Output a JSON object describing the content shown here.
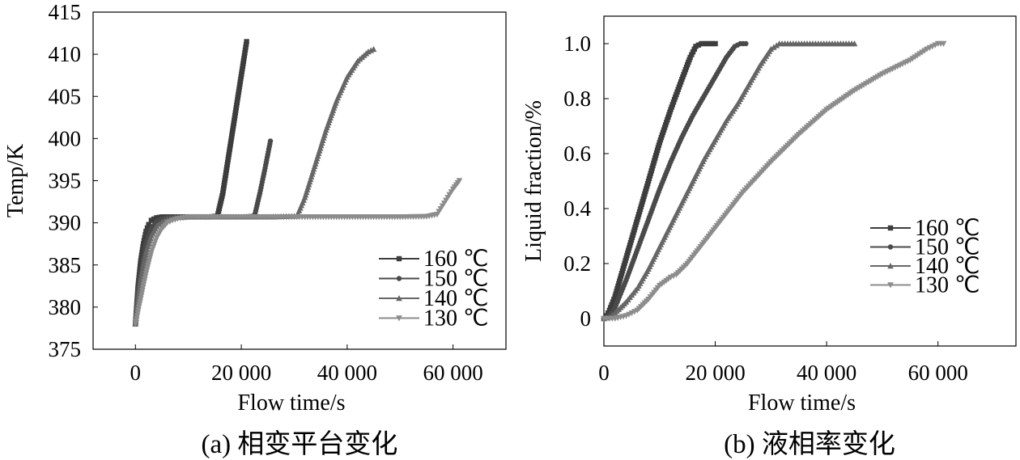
{
  "chart_data": [
    {
      "type": "line",
      "panel": "a",
      "caption": "(a) 相变平台变化",
      "xlabel": "Flow time/s",
      "ylabel": "Temp/K",
      "xlim": [
        -8000,
        70000
      ],
      "ylim": [
        375,
        415
      ],
      "xticks": [
        0,
        20000,
        40000,
        60000
      ],
      "xtick_labels": [
        "0",
        "20 000",
        "40 000",
        "60 000"
      ],
      "yticks": [
        375,
        380,
        385,
        390,
        395,
        400,
        405,
        410,
        415
      ],
      "ytick_labels": [
        "375",
        "380",
        "385",
        "390",
        "395",
        "400",
        "405",
        "410",
        "415"
      ],
      "legend_position": "lower-right",
      "series": [
        {
          "name": "160 ℃",
          "color": "#3d3d3d",
          "marker": "square",
          "x": [
            0,
            500,
            1000,
            1500,
            2000,
            2500,
            3000,
            4000,
            5000,
            6000,
            8000,
            10000,
            12000,
            14000,
            15500,
            16500,
            17500,
            18500,
            19500,
            20500,
            21000
          ],
          "y": [
            378,
            382.5,
            385.5,
            387.5,
            389,
            389.8,
            390.3,
            390.6,
            390.7,
            390.7,
            390.7,
            390.7,
            390.7,
            390.7,
            390.8,
            393.5,
            397.5,
            401.5,
            405.5,
            409.5,
            411.5
          ]
        },
        {
          "name": "150 ℃",
          "color": "#4a4a4a",
          "marker": "circle",
          "x": [
            0,
            500,
            1000,
            2000,
            3000,
            4000,
            5000,
            6000,
            8000,
            10000,
            14000,
            18000,
            20000,
            22500,
            23500,
            24500,
            25500
          ],
          "y": [
            378,
            381.5,
            384,
            387.5,
            389.3,
            390.2,
            390.5,
            390.6,
            390.7,
            390.7,
            390.7,
            390.7,
            390.7,
            390.8,
            393.5,
            396.5,
            399.7
          ]
        },
        {
          "name": "140 ℃",
          "color": "#666666",
          "marker": "triangle-up",
          "x": [
            0,
            500,
            1000,
            2000,
            3000,
            4000,
            5000,
            6000,
            7000,
            8000,
            10000,
            15000,
            20000,
            25000,
            30500,
            32000,
            34000,
            36000,
            38000,
            40000,
            42000,
            44000,
            45000
          ],
          "y": [
            378,
            381,
            383.3,
            386.5,
            388.5,
            389.6,
            390.1,
            390.4,
            390.55,
            390.65,
            390.7,
            390.7,
            390.7,
            390.7,
            390.8,
            393,
            397,
            401,
            404.5,
            407.3,
            409.2,
            410.3,
            410.6
          ]
        },
        {
          "name": "130 ℃",
          "color": "#8c8c8c",
          "marker": "triangle-down",
          "x": [
            0,
            1000,
            2000,
            3000,
            4000,
            5000,
            6000,
            7000,
            8000,
            9000,
            10000,
            12000,
            20000,
            30000,
            40000,
            50000,
            55000,
            57000,
            58000,
            59000,
            60000,
            61200
          ],
          "y": [
            378,
            381,
            384,
            386.5,
            388.2,
            389.3,
            390,
            390.3,
            390.5,
            390.6,
            390.7,
            390.7,
            390.7,
            390.7,
            390.7,
            390.7,
            390.75,
            391,
            392,
            393,
            394,
            395
          ]
        }
      ]
    },
    {
      "type": "line",
      "panel": "b",
      "caption": "(b) 液相率变化",
      "xlabel": "Flow time/s",
      "ylabel": "Liquid fraction/%",
      "xlim": [
        0,
        74000
      ],
      "ylim": [
        -0.1,
        1.1
      ],
      "xticks": [
        0,
        20000,
        40000,
        60000
      ],
      "xtick_labels": [
        "0",
        "20 000",
        "40 000",
        "60 000"
      ],
      "yticks": [
        0,
        0.2,
        0.4,
        0.6,
        0.8,
        1.0
      ],
      "ytick_labels": [
        "0",
        "0.2",
        "0.4",
        "0.6",
        "0.8",
        "1.0"
      ],
      "legend_position": "middle-right",
      "series": [
        {
          "name": "160 ℃",
          "color": "#3d3d3d",
          "marker": "square",
          "x": [
            0,
            500,
            1000,
            2000,
            4000,
            6000,
            8000,
            10000,
            12000,
            14000,
            15500,
            16500,
            17500,
            18500,
            20000
          ],
          "y": [
            0,
            0.01,
            0.03,
            0.08,
            0.22,
            0.36,
            0.5,
            0.64,
            0.76,
            0.87,
            0.95,
            0.99,
            1.0,
            1.0,
            1.0
          ]
        },
        {
          "name": "150 ℃",
          "color": "#4a4a4a",
          "marker": "circle",
          "x": [
            0,
            1000,
            2000,
            3000,
            4000,
            6000,
            8000,
            10000,
            12000,
            14000,
            16000,
            18000,
            20000,
            22000,
            23500,
            24500,
            25500
          ],
          "y": [
            0,
            0.01,
            0.04,
            0.09,
            0.14,
            0.25,
            0.36,
            0.47,
            0.57,
            0.66,
            0.74,
            0.81,
            0.88,
            0.95,
            0.99,
            1.0,
            1.0
          ]
        },
        {
          "name": "140 ℃",
          "color": "#666666",
          "marker": "triangle-up",
          "x": [
            0,
            1000,
            2000,
            4000,
            6000,
            8000,
            10000,
            12000,
            14000,
            16000,
            18000,
            20000,
            22000,
            24000,
            26000,
            28000,
            30000,
            31500,
            33000,
            35000,
            40000,
            45000
          ],
          "y": [
            0,
            0.005,
            0.02,
            0.06,
            0.11,
            0.18,
            0.26,
            0.34,
            0.42,
            0.5,
            0.58,
            0.65,
            0.72,
            0.78,
            0.85,
            0.92,
            0.98,
            1.0,
            1.0,
            1.0,
            1.0,
            1.0
          ]
        },
        {
          "name": "130 ℃",
          "color": "#8c8c8c",
          "marker": "triangle-down",
          "x": [
            0,
            2000,
            4000,
            6000,
            8000,
            10000,
            12000,
            13000,
            15000,
            20000,
            25000,
            30000,
            35000,
            40000,
            45000,
            50000,
            55000,
            58000,
            60000,
            61000
          ],
          "y": [
            0,
            0,
            0.01,
            0.03,
            0.07,
            0.12,
            0.15,
            0.16,
            0.2,
            0.33,
            0.46,
            0.57,
            0.67,
            0.76,
            0.83,
            0.89,
            0.94,
            0.98,
            1.0,
            1.0
          ]
        }
      ]
    }
  ]
}
